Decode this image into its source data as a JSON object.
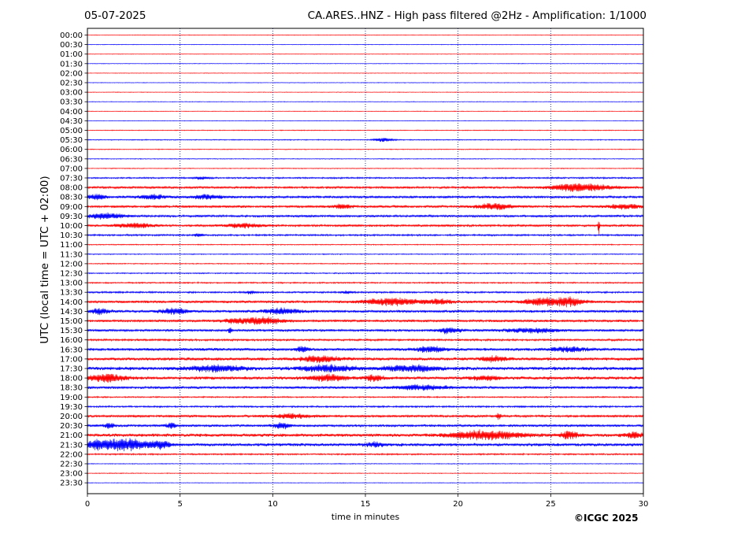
{
  "header": {
    "date": "05-07-2025",
    "title": "CA.ARES..HNZ - High pass filtered @2Hz - Amplification: 1/1000"
  },
  "footer": {
    "copyright": "©ICGC 2025"
  },
  "chart_data": {
    "type": "line",
    "title": "CA.ARES..HNZ - High pass filtered @2Hz - Amplification: 1/1000",
    "xlabel": "time in minutes",
    "ylabel": "UTC (local time = UTC + 02:00)",
    "xlim": [
      0,
      30
    ],
    "x_ticks": [
      0,
      5,
      10,
      15,
      20,
      25,
      30
    ],
    "vertical_gridlines": [
      5,
      10,
      15,
      20,
      25
    ],
    "grid": "dotted vertical",
    "row_labels": [
      "00:00",
      "00:30",
      "01:00",
      "01:30",
      "02:00",
      "02:30",
      "03:00",
      "03:30",
      "04:00",
      "04:30",
      "05:00",
      "05:30",
      "06:00",
      "06:30",
      "07:00",
      "07:30",
      "08:00",
      "08:30",
      "09:00",
      "09:30",
      "10:00",
      "10:30",
      "11:00",
      "11:30",
      "12:00",
      "12:30",
      "13:00",
      "13:30",
      "14:00",
      "14:30",
      "15:00",
      "15:30",
      "16:00",
      "16:30",
      "17:00",
      "17:30",
      "18:00",
      "18:30",
      "19:00",
      "19:30",
      "20:00",
      "20:30",
      "21:00",
      "21:30",
      "22:00",
      "22:30",
      "23:00",
      "23:30"
    ],
    "colors": {
      "even_rows": "#ff0000",
      "odd_rows": "#0000ff"
    },
    "noise_levels": [
      0.3,
      0.3,
      0.3,
      0.3,
      0.3,
      0.3,
      0.3,
      0.3,
      0.3,
      0.3,
      0.4,
      0.5,
      0.4,
      0.4,
      0.4,
      0.8,
      1.2,
      1.3,
      1.3,
      1.2,
      1.2,
      0.9,
      0.5,
      0.5,
      0.5,
      0.6,
      0.7,
      0.9,
      1.4,
      1.4,
      1.3,
      1.3,
      1.0,
      1.5,
      1.6,
      1.8,
      1.7,
      1.4,
      0.7,
      0.9,
      1.3,
      1.3,
      1.7,
      1.6,
      0.8,
      0.4,
      0.4,
      0.3
    ],
    "bursts": [
      {
        "row": 11,
        "minute": 16.0,
        "amp": 3,
        "dur": 1.0
      },
      {
        "row": 15,
        "minute": 6.2,
        "amp": 2,
        "dur": 0.8
      },
      {
        "row": 16,
        "minute": 27.0,
        "amp": 4,
        "dur": 3.0
      },
      {
        "row": 16,
        "minute": 26.0,
        "amp": 3,
        "dur": 2.0
      },
      {
        "row": 17,
        "minute": 0.5,
        "amp": 4,
        "dur": 1.0
      },
      {
        "row": 17,
        "minute": 3.5,
        "amp": 3,
        "dur": 1.5
      },
      {
        "row": 17,
        "minute": 6.5,
        "amp": 3,
        "dur": 1.5
      },
      {
        "row": 18,
        "minute": 13.8,
        "amp": 3,
        "dur": 1.0
      },
      {
        "row": 18,
        "minute": 22.0,
        "amp": 4,
        "dur": 2.0
      },
      {
        "row": 18,
        "minute": 29.0,
        "amp": 3,
        "dur": 2.0
      },
      {
        "row": 19,
        "minute": 1.0,
        "amp": 4,
        "dur": 2.0
      },
      {
        "row": 20,
        "minute": 2.5,
        "amp": 3,
        "dur": 2.0
      },
      {
        "row": 20,
        "minute": 8.5,
        "amp": 3,
        "dur": 2.0
      },
      {
        "row": 20,
        "minute": 27.6,
        "amp": 14,
        "dur": 0.1
      },
      {
        "row": 21,
        "minute": 6.0,
        "amp": 2,
        "dur": 0.5
      },
      {
        "row": 27,
        "minute": 8.8,
        "amp": 2,
        "dur": 0.5
      },
      {
        "row": 27,
        "minute": 14.0,
        "amp": 2,
        "dur": 0.6
      },
      {
        "row": 28,
        "minute": 16.5,
        "amp": 5,
        "dur": 3.0
      },
      {
        "row": 28,
        "minute": 24.5,
        "amp": 5,
        "dur": 2.0
      },
      {
        "row": 28,
        "minute": 26.0,
        "amp": 6,
        "dur": 1.5
      },
      {
        "row": 28,
        "minute": 19.0,
        "amp": 3,
        "dur": 1.5
      },
      {
        "row": 29,
        "minute": 0.7,
        "amp": 4,
        "dur": 1.0
      },
      {
        "row": 29,
        "minute": 4.7,
        "amp": 4,
        "dur": 1.5
      },
      {
        "row": 29,
        "minute": 10.5,
        "amp": 4,
        "dur": 2.0
      },
      {
        "row": 30,
        "minute": 9.5,
        "amp": 5,
        "dur": 2.0
      },
      {
        "row": 30,
        "minute": 8.0,
        "amp": 3,
        "dur": 1.5
      },
      {
        "row": 31,
        "minute": 19.5,
        "amp": 4,
        "dur": 1.2
      },
      {
        "row": 31,
        "minute": 24.0,
        "amp": 3,
        "dur": 3.0
      },
      {
        "row": 31,
        "minute": 7.7,
        "amp": 4,
        "dur": 0.2
      },
      {
        "row": 33,
        "minute": 18.5,
        "amp": 4,
        "dur": 1.5
      },
      {
        "row": 33,
        "minute": 11.6,
        "amp": 4,
        "dur": 0.6
      },
      {
        "row": 33,
        "minute": 26.0,
        "amp": 3,
        "dur": 2.0
      },
      {
        "row": 34,
        "minute": 12.5,
        "amp": 4,
        "dur": 2.0
      },
      {
        "row": 34,
        "minute": 22.0,
        "amp": 3,
        "dur": 1.5
      },
      {
        "row": 35,
        "minute": 7.0,
        "amp": 4,
        "dur": 3.0
      },
      {
        "row": 35,
        "minute": 13.0,
        "amp": 4,
        "dur": 3.0
      },
      {
        "row": 35,
        "minute": 17.5,
        "amp": 4,
        "dur": 3.0
      },
      {
        "row": 36,
        "minute": 1.0,
        "amp": 5,
        "dur": 2.0
      },
      {
        "row": 36,
        "minute": 13.0,
        "amp": 4,
        "dur": 2.0
      },
      {
        "row": 36,
        "minute": 15.5,
        "amp": 4,
        "dur": 1.0
      },
      {
        "row": 36,
        "minute": 21.5,
        "amp": 3,
        "dur": 1.5
      },
      {
        "row": 37,
        "minute": 18.0,
        "amp": 3,
        "dur": 3.0
      },
      {
        "row": 40,
        "minute": 22.2,
        "amp": 6,
        "dur": 0.2
      },
      {
        "row": 40,
        "minute": 11.0,
        "amp": 3,
        "dur": 2.0
      },
      {
        "row": 41,
        "minute": 1.2,
        "amp": 4,
        "dur": 0.5
      },
      {
        "row": 41,
        "minute": 4.5,
        "amp": 4,
        "dur": 0.5
      },
      {
        "row": 41,
        "minute": 10.5,
        "amp": 4,
        "dur": 1.0
      },
      {
        "row": 42,
        "minute": 21.5,
        "amp": 6,
        "dur": 4.0
      },
      {
        "row": 42,
        "minute": 26.0,
        "amp": 5,
        "dur": 1.0
      },
      {
        "row": 42,
        "minute": 29.5,
        "amp": 4,
        "dur": 1.0
      },
      {
        "row": 43,
        "minute": 2.0,
        "amp": 9,
        "dur": 2.5
      },
      {
        "row": 43,
        "minute": 0.5,
        "amp": 5,
        "dur": 1.0
      },
      {
        "row": 43,
        "minute": 4.0,
        "amp": 5,
        "dur": 1.0
      },
      {
        "row": 43,
        "minute": 15.5,
        "amp": 3,
        "dur": 1.0
      }
    ]
  }
}
